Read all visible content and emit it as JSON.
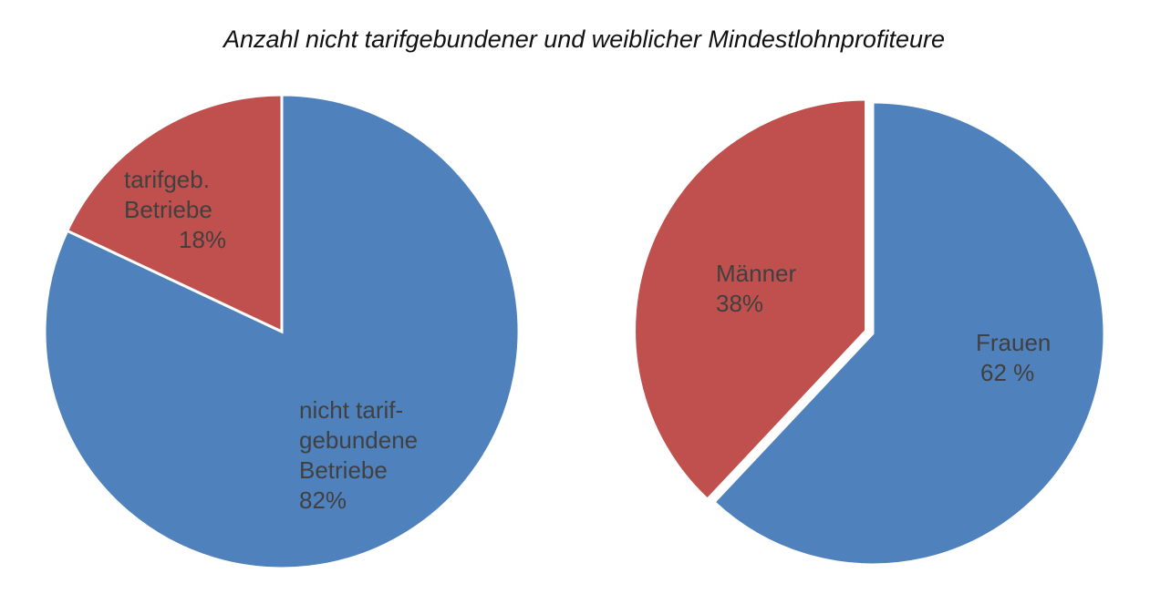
{
  "title": "Anzahl nicht tarifgebundener und weiblicher Mindestlohnprofiteure",
  "chart_data": [
    {
      "type": "pie",
      "slices": [
        {
          "key": "nicht-tarifgebunden",
          "value": 82,
          "color": "#4F81BD",
          "label_lines": [
            "nicht tarif-",
            "gebundene",
            "Betriebe",
            "82%"
          ]
        },
        {
          "key": "tarifgebunden",
          "value": 18,
          "color": "#C0504D",
          "label_lines": [
            "tarifgeb.",
            "Betriebe",
            "18%"
          ]
        }
      ]
    },
    {
      "type": "pie",
      "slices": [
        {
          "key": "frauen",
          "value": 62,
          "color": "#4F81BD",
          "label_lines": [
            "Frauen",
            "62 %"
          ]
        },
        {
          "key": "maenner",
          "value": 38,
          "color": "#C0504D",
          "label_lines": [
            "Männer",
            "38%"
          ]
        }
      ]
    }
  ]
}
